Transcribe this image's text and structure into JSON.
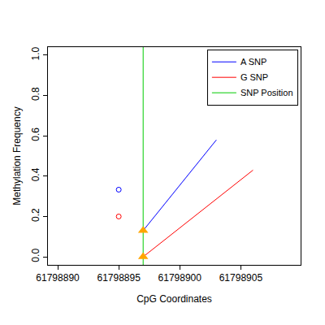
{
  "chart_data": {
    "type": "line",
    "x_label": "CpG Coordinates",
    "y_label": "Methylation Frequency",
    "series": [
      {
        "name": "A SNP",
        "color": "#0000ff",
        "x": [
          61798895,
          61798897,
          61798903
        ],
        "values": [
          0.333,
          0.13,
          0.58
        ]
      },
      {
        "name": "G SNP",
        "color": "#ff0000",
        "x": [
          61798895,
          61798897,
          61798906
        ],
        "values": [
          0.2,
          0.0,
          0.43
        ]
      }
    ],
    "vlines": [
      {
        "name": "SNP Position",
        "x": 61798897,
        "color": "#00cc00"
      }
    ],
    "xlim": [
      61798889.2,
      61798909.9
    ],
    "xticks": [
      61798890,
      61798895,
      61798900,
      61798905
    ],
    "ylim": [
      -0.04,
      1.04
    ],
    "yticks": [
      {
        "value": 0,
        "label": "0.0"
      },
      {
        "value": 0.2,
        "label": "0.2"
      },
      {
        "value": 0.4,
        "label": "0.4"
      },
      {
        "value": 0.6,
        "label": "0.6"
      },
      {
        "value": 0.8,
        "label": "0.8"
      },
      {
        "value": 1,
        "label": "1.0"
      }
    ],
    "grid": false,
    "legend": "upper right"
  }
}
